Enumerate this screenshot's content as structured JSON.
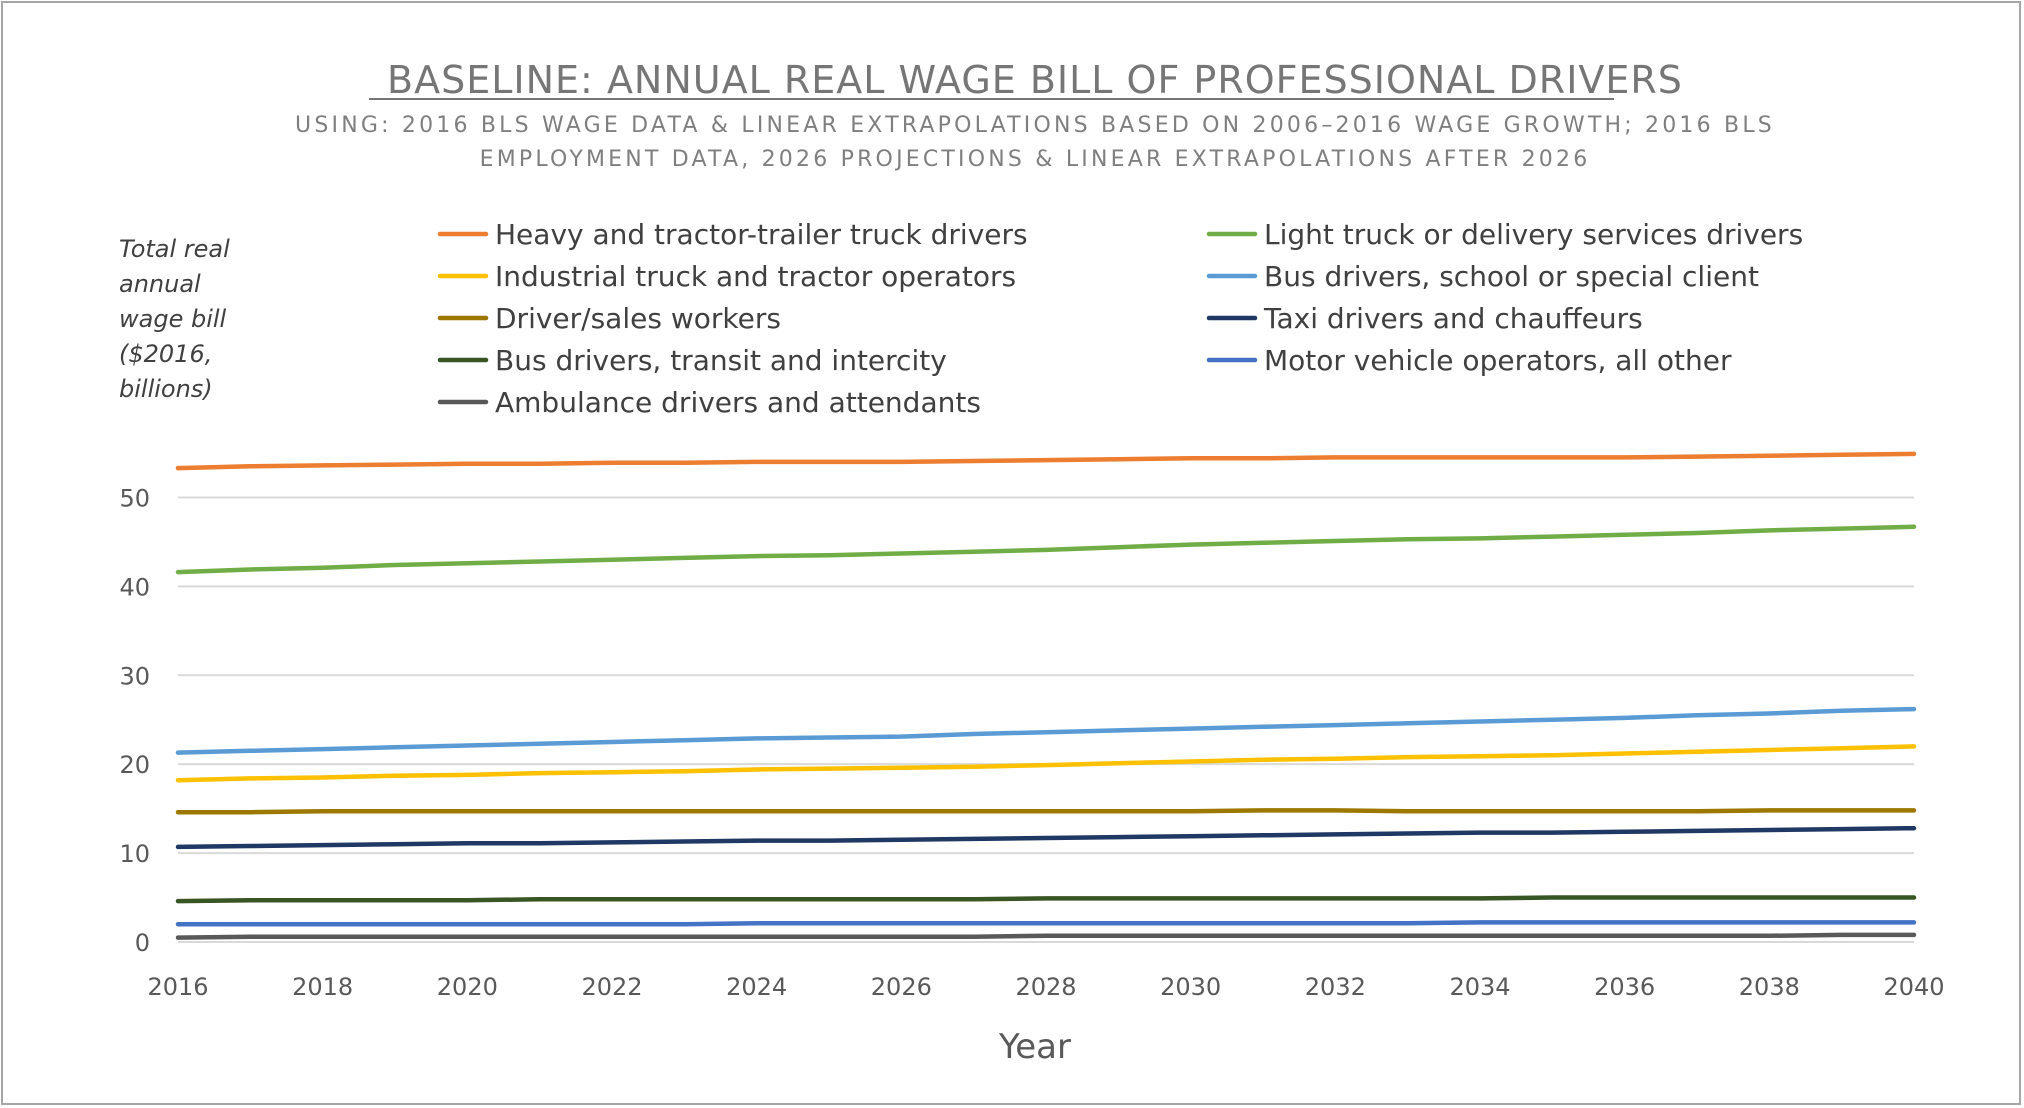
{
  "chart_data": {
    "type": "line",
    "title": "BASELINE: ANNUAL REAL WAGE BILL OF PROFESSIONAL DRIVERS",
    "subtitle_lines": [
      "USING: 2016 BLS WAGE DATA & LINEAR EXTRAPOLATIONS BASED ON 2006–2016 WAGE GROWTH; 2016 BLS",
      "EMPLOYMENT DATA, 2026 PROJECTIONS & LINEAR EXTRAPOLATIONS AFTER 2026"
    ],
    "ylabel_lines": [
      "Total real",
      "annual",
      "wage bill",
      "($2016,",
      "billions)"
    ],
    "xlabel": "Year",
    "ylim": [
      0,
      55
    ],
    "y_ticks": [
      0,
      10,
      20,
      30,
      40,
      50
    ],
    "x_ticks": [
      2016,
      2018,
      2020,
      2022,
      2024,
      2026,
      2028,
      2030,
      2032,
      2034,
      2036,
      2038,
      2040
    ],
    "grid": true,
    "legend_position": "top",
    "x": [
      2016,
      2017,
      2018,
      2019,
      2020,
      2021,
      2022,
      2023,
      2024,
      2025,
      2026,
      2027,
      2028,
      2029,
      2030,
      2031,
      2032,
      2033,
      2034,
      2035,
      2036,
      2037,
      2038,
      2039,
      2040
    ],
    "series": [
      {
        "name": "Heavy and tractor-trailer truck drivers",
        "color": "#ED7D31",
        "values": [
          53.3,
          53.5,
          53.6,
          53.7,
          53.8,
          53.8,
          53.9,
          53.9,
          54.0,
          54.0,
          54.0,
          54.1,
          54.2,
          54.3,
          54.4,
          54.4,
          54.5,
          54.5,
          54.5,
          54.5,
          54.5,
          54.6,
          54.7,
          54.8,
          54.9
        ]
      },
      {
        "name": "Light truck or delivery services drivers",
        "color": "#70AD47",
        "values": [
          41.6,
          41.9,
          42.1,
          42.4,
          42.6,
          42.8,
          43.0,
          43.2,
          43.4,
          43.5,
          43.7,
          43.9,
          44.1,
          44.4,
          44.7,
          44.9,
          45.1,
          45.3,
          45.4,
          45.6,
          45.8,
          46.0,
          46.3,
          46.5,
          46.7
        ]
      },
      {
        "name": "Industrial truck and tractor operators",
        "color": "#FFC000",
        "values": [
          18.2,
          18.4,
          18.5,
          18.7,
          18.8,
          19.0,
          19.1,
          19.2,
          19.4,
          19.5,
          19.6,
          19.7,
          19.9,
          20.1,
          20.3,
          20.5,
          20.6,
          20.8,
          20.9,
          21.0,
          21.2,
          21.4,
          21.6,
          21.8,
          22.0
        ]
      },
      {
        "name": "Bus drivers, school or special client",
        "color": "#5B9BD5",
        "values": [
          21.3,
          21.5,
          21.7,
          21.9,
          22.1,
          22.3,
          22.5,
          22.7,
          22.9,
          23.0,
          23.1,
          23.4,
          23.6,
          23.8,
          24.0,
          24.2,
          24.4,
          24.6,
          24.8,
          25.0,
          25.2,
          25.5,
          25.7,
          26.0,
          26.2
        ]
      },
      {
        "name": "Driver/sales workers",
        "color": "#9C7800",
        "values": [
          14.6,
          14.6,
          14.7,
          14.7,
          14.7,
          14.7,
          14.7,
          14.7,
          14.7,
          14.7,
          14.7,
          14.7,
          14.7,
          14.7,
          14.7,
          14.8,
          14.8,
          14.7,
          14.7,
          14.7,
          14.7,
          14.7,
          14.8,
          14.8,
          14.8
        ]
      },
      {
        "name": "Taxi drivers and chauffeurs",
        "color": "#203864",
        "values": [
          10.7,
          10.8,
          10.9,
          11.0,
          11.1,
          11.1,
          11.2,
          11.3,
          11.4,
          11.4,
          11.5,
          11.6,
          11.7,
          11.8,
          11.9,
          12.0,
          12.1,
          12.2,
          12.3,
          12.3,
          12.4,
          12.5,
          12.6,
          12.7,
          12.8
        ]
      },
      {
        "name": "Bus drivers, transit and intercity",
        "color": "#375623",
        "values": [
          4.6,
          4.7,
          4.7,
          4.7,
          4.7,
          4.8,
          4.8,
          4.8,
          4.8,
          4.8,
          4.8,
          4.8,
          4.9,
          4.9,
          4.9,
          4.9,
          4.9,
          4.9,
          4.9,
          5.0,
          5.0,
          5.0,
          5.0,
          5.0,
          5.0
        ]
      },
      {
        "name": "Motor vehicle operators, all other",
        "color": "#4472C4",
        "values": [
          2.0,
          2.0,
          2.0,
          2.0,
          2.0,
          2.0,
          2.0,
          2.0,
          2.1,
          2.1,
          2.1,
          2.1,
          2.1,
          2.1,
          2.1,
          2.1,
          2.1,
          2.1,
          2.2,
          2.2,
          2.2,
          2.2,
          2.2,
          2.2,
          2.2
        ]
      },
      {
        "name": "Ambulance drivers and attendants",
        "color": "#595959",
        "values": [
          0.5,
          0.6,
          0.6,
          0.6,
          0.6,
          0.6,
          0.6,
          0.6,
          0.6,
          0.6,
          0.6,
          0.6,
          0.7,
          0.7,
          0.7,
          0.7,
          0.7,
          0.7,
          0.7,
          0.7,
          0.7,
          0.7,
          0.7,
          0.8,
          0.8
        ]
      }
    ]
  }
}
